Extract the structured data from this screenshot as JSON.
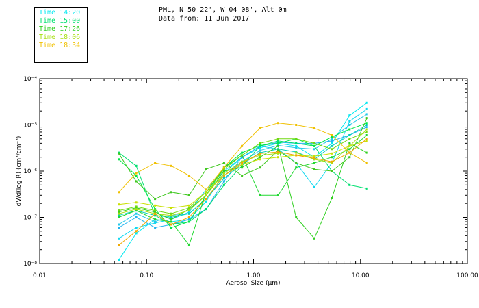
{
  "header": {
    "line1": "PML, N 50 22', W 04 08', Alt 0m",
    "line2": "Data from: 11 Jun 2017"
  },
  "chart_data": {
    "type": "line",
    "title": "PML, N 50 22', W 04 08', Alt 0m",
    "subtitle": "Data from: 11 Jun 2017",
    "xlabel": "Aerosol Size (µm)",
    "ylabel": "dV/d(log R) (cm³/cm⁻³)",
    "x_scale": "log",
    "y_scale": "log",
    "xlim": [
      0.01,
      100
    ],
    "ylim": [
      1e-08,
      0.0001
    ],
    "grid": false,
    "legend_position": "top-left",
    "x_ticks": [
      {
        "value": 0.01,
        "label": "0.01"
      },
      {
        "value": 0.1,
        "label": "0.10"
      },
      {
        "value": 1,
        "label": "1.00"
      },
      {
        "value": 10,
        "label": "10.00"
      },
      {
        "value": 100,
        "label": "100.00"
      }
    ],
    "y_ticks": [
      {
        "value": 1e-08,
        "label": "10⁻⁸"
      },
      {
        "value": 1e-07,
        "label": "10⁻⁷"
      },
      {
        "value": 1e-06,
        "label": "10⁻⁶"
      },
      {
        "value": 1e-05,
        "label": "10⁻⁵"
      },
      {
        "value": 0.0001,
        "label": "10⁻⁴"
      }
    ],
    "x": [
      0.055,
      0.08,
      0.12,
      0.17,
      0.25,
      0.36,
      0.53,
      0.78,
      1.15,
      1.7,
      2.5,
      3.7,
      5.4,
      7.9,
      11.5
    ],
    "series": [
      {
        "name": "Time 14:20",
        "color": "#00e8f0",
        "values": [
          1.2e-08,
          4.5e-08,
          9e-08,
          8e-08,
          9e-08,
          2.2e-07,
          9e-07,
          2e-06,
          3.2e-06,
          4e-06,
          3.5e-06,
          2e-06,
          4e-06,
          1.6e-05,
          3e-05
        ]
      },
      {
        "name": "",
        "color": "#10d8f0",
        "values": [
          3.5e-08,
          6e-08,
          7.5e-08,
          9e-08,
          1.3e-07,
          4e-07,
          1e-06,
          2e-06,
          3.5e-06,
          3e-06,
          1.5e-06,
          4.5e-07,
          1.5e-06,
          1.2e-05,
          2.2e-05
        ]
      },
      {
        "name": "",
        "color": "#20c8e8",
        "values": [
          7e-08,
          1.2e-07,
          8e-08,
          1.1e-07,
          1.2e-07,
          2.5e-07,
          8e-07,
          1.6e-06,
          2.8e-06,
          3.6e-06,
          3.2e-06,
          3e-06,
          5e-06,
          1e-05,
          1.7e-05
        ]
      },
      {
        "name": "",
        "color": "#20b4f0",
        "values": [
          6e-08,
          1e-07,
          6e-08,
          7e-08,
          9e-08,
          1.5e-07,
          6e-07,
          2e-06,
          3.5e-06,
          4.2e-06,
          4e-06,
          4e-06,
          4.5e-06,
          6e-06,
          9e-06
        ]
      },
      {
        "name": "",
        "color": "#00d0b8",
        "values": [
          1.1e-07,
          1.4e-07,
          1.1e-07,
          1e-07,
          1.2e-07,
          2.5e-07,
          7e-07,
          1.4e-06,
          2.5e-06,
          3e-06,
          2.6e-06,
          1.8e-06,
          3.5e-06,
          6e-06,
          1e-05
        ]
      },
      {
        "name": "Time 15:00",
        "color": "#00e070",
        "values": [
          2.5e-06,
          1.3e-06,
          1.1e-07,
          7e-08,
          8e-08,
          1.5e-07,
          5e-07,
          1.3e-06,
          3.5e-06,
          4.5e-06,
          4e-06,
          3.5e-06,
          1e-06,
          5e-07,
          4.2e-07
        ]
      },
      {
        "name": "",
        "color": "#00e848",
        "values": [
          1.8e-06,
          8e-07,
          1.5e-07,
          6e-08,
          8e-08,
          3e-07,
          1.2e-06,
          2.5e-06,
          3.6e-06,
          4e-06,
          5e-06,
          3.5e-06,
          5.5e-06,
          8e-06,
          1.1e-05
        ]
      },
      {
        "name": "",
        "color": "#20d830",
        "values": [
          1e-07,
          1.4e-07,
          9e-08,
          8e-08,
          2.5e-08,
          3.5e-07,
          1.2e-06,
          2.2e-06,
          3e-07,
          3e-07,
          1.2e-06,
          1.5e-06,
          2e-06,
          3e-06,
          6e-06
        ]
      },
      {
        "name": "Time 17:26",
        "color": "#30d020",
        "values": [
          1.3e-07,
          1.6e-07,
          1.3e-07,
          9e-08,
          1.5e-07,
          3e-07,
          1e-06,
          1.2e-06,
          2e-06,
          3.5e-06,
          1e-07,
          3.5e-08,
          2.6e-07,
          4e-06,
          2.5e-06
        ]
      },
      {
        "name": "",
        "color": "#40c820",
        "values": [
          2.4e-06,
          6e-07,
          2.5e-07,
          3.5e-07,
          3e-07,
          1.1e-06,
          1.5e-06,
          8e-07,
          1.2e-06,
          2.8e-06,
          1.5e-06,
          1.1e-06,
          1e-06,
          2e-06,
          1.4e-05
        ]
      },
      {
        "name": "",
        "color": "#70d810",
        "values": [
          1.4e-07,
          1.7e-07,
          1.4e-07,
          1.2e-07,
          1.6e-07,
          3.5e-07,
          1.1e-06,
          2.2e-06,
          4e-06,
          5e-06,
          5e-06,
          4e-06,
          3e-06,
          5e-06,
          7e-06
        ]
      },
      {
        "name": "Time 18:06",
        "color": "#a8e010",
        "values": [
          1.2e-07,
          1.5e-07,
          1.2e-07,
          1.1e-07,
          1.4e-07,
          3e-07,
          9e-07,
          1.6e-06,
          2.2e-06,
          2.4e-06,
          2.5e-06,
          1.8e-06,
          1.5e-06,
          3.5e-06,
          8e-06
        ]
      },
      {
        "name": "",
        "color": "#c8e000",
        "values": [
          1.9e-07,
          2.1e-07,
          1.8e-07,
          1.6e-07,
          1.8e-07,
          3.5e-07,
          8e-07,
          1.4e-06,
          1.8e-06,
          2e-06,
          2.2e-06,
          2.1e-06,
          2.4e-06,
          3.5e-06,
          4.5e-06
        ]
      },
      {
        "name": "Time 18:34",
        "color": "#f0c000",
        "values": [
          3.5e-07,
          9e-07,
          1.5e-06,
          1.3e-06,
          8e-07,
          4e-07,
          1.2e-06,
          3.5e-06,
          8.5e-06,
          1.1e-05,
          1e-05,
          8.5e-06,
          6e-06,
          2.5e-06,
          1.5e-06
        ]
      },
      {
        "name": "",
        "color": "#f0a800",
        "values": [
          2.5e-08,
          5e-08,
          1.2e-07,
          7e-08,
          1e-07,
          2.5e-07,
          8e-07,
          1.5e-06,
          2.4e-06,
          2.6e-06,
          2.2e-06,
          1.9e-06,
          1.6e-06,
          2.5e-06,
          5e-06
        ]
      }
    ]
  }
}
